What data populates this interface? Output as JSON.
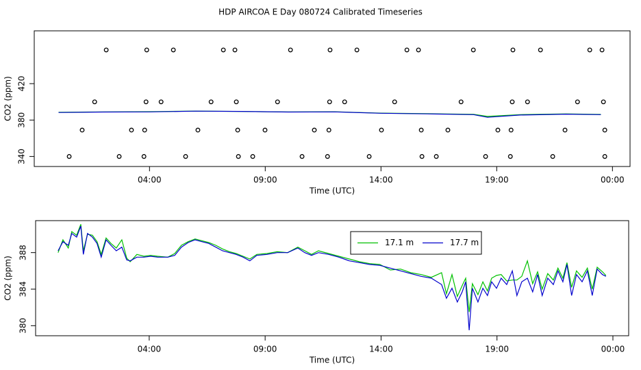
{
  "title": "HDP AIRCOA E  Day 080724  Calibrated Timeseries",
  "chart_data": [
    {
      "type": "line",
      "xlabel": "Time (UTC)",
      "ylabel": "CO2 (ppm)",
      "xlim": [
        -0.98,
        24.76
      ],
      "ylim": [
        329,
        478
      ],
      "xticks": [
        {
          "value": 4,
          "label": "04:00"
        },
        {
          "value": 9,
          "label": "09:00"
        },
        {
          "value": 14,
          "label": "14:00"
        },
        {
          "value": 19,
          "label": "19:00"
        },
        {
          "value": 24,
          "label": "00:00"
        }
      ],
      "yticks": [
        340,
        380,
        420
      ],
      "x": [
        0.07,
        2,
        4,
        6,
        8,
        10,
        12,
        14,
        16,
        18,
        18.6,
        20,
        22,
        23.5
      ],
      "series": [
        {
          "color": "#00c000",
          "values": [
            388.5,
            389.0,
            389.2,
            389.9,
            389.4,
            388.9,
            389.1,
            387.6,
            387.0,
            386.3,
            384.0,
            386.0,
            386.8,
            386.2
          ]
        },
        {
          "color": "#0000cc",
          "values": [
            388.3,
            388.8,
            389.0,
            389.8,
            389.5,
            388.8,
            389.0,
            387.5,
            386.8,
            386.0,
            383.0,
            385.5,
            386.5,
            386.0
          ]
        }
      ],
      "markers": {
        "x": [
          2.13,
          3.88,
          5.03,
          7.19,
          7.69,
          10.09,
          11.8,
          12.96,
          15.12,
          15.62,
          17.99,
          19.7,
          20.89,
          23.02,
          23.55,
          1.63,
          3.85,
          4.5,
          6.66,
          7.75,
          9.53,
          11.78,
          12.43,
          14.59,
          17.46,
          19.67,
          20.33,
          22.49,
          23.61,
          1.09,
          3.22,
          3.79,
          6.09,
          7.81,
          8.99,
          11.12,
          11.75,
          14.02,
          15.74,
          16.89,
          19.05,
          19.62,
          21.95,
          23.67,
          0.53,
          2.69,
          3.76,
          5.56,
          7.84,
          8.46,
          10.59,
          11.69,
          13.49,
          15.77,
          16.39,
          18.52,
          19.59,
          21.42,
          23.67
        ],
        "y": [
          457,
          457,
          457,
          457,
          457,
          457,
          457,
          457,
          457,
          457,
          457,
          457,
          457,
          457,
          457,
          400,
          400,
          400,
          400,
          400,
          400,
          400,
          400,
          400,
          400,
          400,
          400,
          400,
          400,
          369,
          369,
          369,
          369,
          369,
          369,
          369,
          369,
          369,
          369,
          369,
          369,
          369,
          369,
          369,
          340,
          340,
          340,
          340,
          340,
          340,
          340,
          340,
          340,
          340,
          340,
          340,
          340,
          340,
          340
        ]
      }
    },
    {
      "type": "line",
      "xlabel": "Time (UTC)",
      "ylabel": "CO2 (ppm)",
      "xlim": [
        -0.9,
        24.68
      ],
      "ylim": [
        378.9,
        391.5
      ],
      "xticks": [
        {
          "value": 4,
          "label": "04:00"
        },
        {
          "value": 9,
          "label": "09:00"
        },
        {
          "value": 14,
          "label": "14:00"
        },
        {
          "value": 19,
          "label": "19:00"
        },
        {
          "value": 24,
          "label": "00:00"
        }
      ],
      "yticks": [
        380,
        384,
        388
      ],
      "x": [
        0.07,
        0.28,
        0.51,
        0.66,
        0.87,
        1.05,
        1.16,
        1.34,
        1.55,
        1.75,
        1.93,
        2.14,
        2.35,
        2.58,
        2.82,
        3.03,
        3.18,
        3.47,
        3.77,
        4.06,
        4.36,
        4.8,
        5.1,
        5.39,
        5.68,
        5.98,
        6.27,
        6.57,
        6.87,
        7.16,
        7.46,
        7.75,
        8.05,
        8.34,
        8.64,
        9.08,
        9.52,
        9.97,
        10.41,
        10.71,
        11.0,
        11.3,
        11.74,
        12.18,
        12.63,
        13.07,
        13.51,
        13.95,
        14.4,
        14.84,
        15.28,
        15.73,
        16.17,
        16.61,
        16.82,
        17.06,
        17.29,
        17.5,
        17.65,
        17.8,
        17.94,
        18.18,
        18.39,
        18.59,
        18.77,
        18.98,
        19.18,
        19.42,
        19.66,
        19.86,
        20.07,
        20.31,
        20.54,
        20.75,
        20.95,
        21.19,
        21.43,
        21.63,
        21.84,
        22.02,
        22.22,
        22.43,
        22.67,
        22.9,
        23.11,
        23.32,
        23.55,
        23.7
      ],
      "series": [
        {
          "name": "17.1 m",
          "color": "#00c000",
          "values": [
            388.0,
            389.4,
            388.5,
            390.3,
            389.9,
            391.1,
            388.2,
            390.0,
            389.9,
            389.2,
            387.8,
            389.6,
            389.0,
            388.5,
            389.4,
            387.4,
            387.0,
            387.8,
            387.6,
            387.7,
            387.6,
            387.5,
            387.9,
            388.8,
            389.2,
            389.5,
            389.3,
            389.1,
            388.8,
            388.4,
            388.1,
            387.9,
            387.6,
            387.3,
            387.8,
            387.9,
            388.1,
            388.0,
            388.6,
            388.2,
            387.8,
            388.2,
            387.9,
            387.6,
            387.3,
            387.0,
            386.8,
            386.7,
            386.1,
            386.2,
            385.8,
            385.6,
            385.3,
            385.8,
            383.5,
            385.6,
            383.2,
            384.4,
            385.2,
            381.5,
            384.6,
            383.4,
            384.8,
            383.8,
            385.2,
            385.5,
            385.6,
            384.9,
            385.0,
            385.0,
            385.4,
            387.1,
            384.6,
            385.9,
            384.0,
            385.7,
            385.0,
            386.3,
            385.2,
            386.9,
            384.2,
            386.0,
            385.3,
            386.3,
            384.0,
            386.4,
            385.9,
            385.5
          ]
        },
        {
          "name": "17.7 m",
          "color": "#0000cc",
          "values": [
            388.2,
            389.2,
            388.8,
            390.1,
            389.7,
            390.9,
            387.8,
            390.1,
            389.7,
            389.0,
            387.5,
            389.4,
            388.8,
            388.2,
            388.6,
            387.2,
            387.1,
            387.5,
            387.5,
            387.6,
            387.5,
            387.5,
            387.7,
            388.6,
            389.1,
            389.4,
            389.2,
            389.0,
            388.6,
            388.2,
            388.0,
            387.8,
            387.5,
            387.1,
            387.7,
            387.8,
            388.0,
            388.0,
            388.5,
            388.0,
            387.7,
            388.0,
            387.8,
            387.5,
            387.1,
            386.9,
            386.7,
            386.6,
            386.3,
            386.0,
            385.7,
            385.4,
            385.2,
            384.5,
            383.0,
            384.1,
            382.6,
            383.7,
            384.8,
            379.5,
            384.1,
            382.6,
            384.1,
            383.3,
            384.8,
            384.1,
            385.2,
            384.5,
            386.0,
            383.3,
            384.8,
            385.2,
            383.7,
            385.6,
            383.3,
            385.2,
            384.5,
            386.0,
            384.8,
            386.7,
            383.3,
            385.6,
            384.8,
            386.0,
            383.3,
            386.2,
            385.6,
            385.4
          ]
        }
      ]
    }
  ]
}
